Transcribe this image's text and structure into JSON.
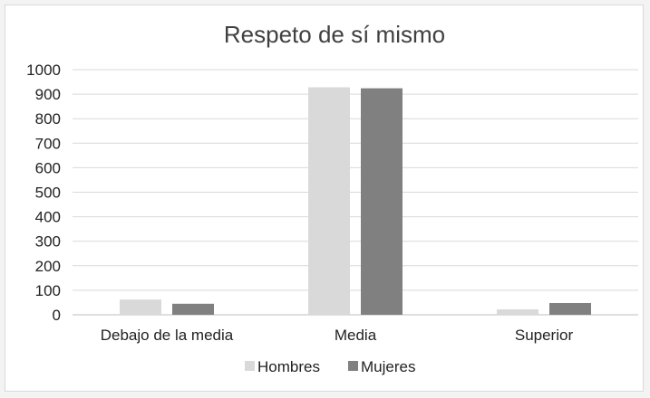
{
  "chart_data": {
    "type": "bar",
    "title": "Respeto de sí mismo",
    "xlabel": "",
    "ylabel": "",
    "categories": [
      "Debajo de la media",
      "Media",
      "Superior"
    ],
    "series": [
      {
        "name": "Hombres",
        "values": [
          62,
          928,
          22
        ],
        "color": "#d9d9d9"
      },
      {
        "name": "Mujeres",
        "values": [
          45,
          924,
          48
        ],
        "color": "#808080"
      }
    ],
    "ylim": [
      0,
      1000
    ],
    "yticks": [
      0,
      100,
      200,
      300,
      400,
      500,
      600,
      700,
      800,
      900,
      1000
    ],
    "grid": true,
    "legend": "bottom"
  }
}
